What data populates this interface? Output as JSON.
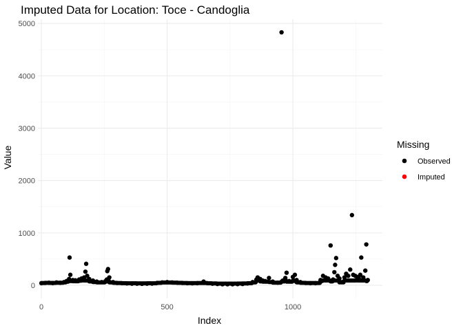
{
  "chart_data": {
    "type": "scatter",
    "title": "Imputed Data for Location: Toce - Candoglia",
    "xlabel": "Index",
    "ylabel": "Value",
    "xlim": [
      -14,
      1356
    ],
    "ylim": [
      -250,
      5080
    ],
    "x_ticks": [
      0,
      500,
      1000
    ],
    "x_tick_labels": [
      "0",
      "500",
      "1000"
    ],
    "y_ticks": [
      0,
      1000,
      2000,
      3000,
      4000,
      5000
    ],
    "y_tick_labels": [
      "0",
      "1000",
      "2000",
      "3000",
      "4000",
      "5000"
    ],
    "x_minor_ticks": [
      250,
      750,
      1250
    ],
    "y_minor_ticks": [
      500,
      1500,
      2500,
      3500,
      4500
    ],
    "grid": true,
    "legend": {
      "title": "Missing",
      "position": "right",
      "entries": [
        {
          "label": "Observed",
          "color": "#000000"
        },
        {
          "label": "Imputed",
          "color": "#ff0000"
        }
      ]
    },
    "series": [
      {
        "name": "Observed",
        "color": "#000000",
        "points": [
          [
            0,
            40
          ],
          [
            15,
            45
          ],
          [
            30,
            50
          ],
          [
            45,
            42
          ],
          [
            60,
            55
          ],
          [
            75,
            48
          ],
          [
            90,
            60
          ],
          [
            100,
            80
          ],
          [
            110,
            120
          ],
          [
            112,
            530
          ],
          [
            115,
            200
          ],
          [
            125,
            100
          ],
          [
            135,
            95
          ],
          [
            150,
            110
          ],
          [
            160,
            130
          ],
          [
            170,
            150
          ],
          [
            175,
            260
          ],
          [
            178,
            410
          ],
          [
            182,
            180
          ],
          [
            190,
            120
          ],
          [
            205,
            90
          ],
          [
            220,
            70
          ],
          [
            240,
            60
          ],
          [
            255,
            80
          ],
          [
            260,
            110
          ],
          [
            262,
            270
          ],
          [
            265,
            310
          ],
          [
            270,
            150
          ],
          [
            285,
            60
          ],
          [
            300,
            45
          ],
          [
            320,
            40
          ],
          [
            340,
            35
          ],
          [
            360,
            30
          ],
          [
            380,
            30
          ],
          [
            400,
            28
          ],
          [
            420,
            30
          ],
          [
            440,
            32
          ],
          [
            460,
            45
          ],
          [
            480,
            55
          ],
          [
            500,
            60
          ],
          [
            520,
            55
          ],
          [
            540,
            50
          ],
          [
            560,
            45
          ],
          [
            580,
            40
          ],
          [
            600,
            38
          ],
          [
            620,
            40
          ],
          [
            645,
            70
          ],
          [
            660,
            40
          ],
          [
            680,
            30
          ],
          [
            700,
            25
          ],
          [
            720,
            20
          ],
          [
            740,
            20
          ],
          [
            760,
            20
          ],
          [
            780,
            22
          ],
          [
            800,
            25
          ],
          [
            820,
            35
          ],
          [
            840,
            60
          ],
          [
            855,
            110
          ],
          [
            860,
            150
          ],
          [
            870,
            120
          ],
          [
            880,
            90
          ],
          [
            890,
            80
          ],
          [
            905,
            140
          ],
          [
            920,
            70
          ],
          [
            940,
            50
          ],
          [
            955,
            4830
          ],
          [
            960,
            90
          ],
          [
            970,
            140
          ],
          [
            975,
            240
          ],
          [
            985,
            80
          ],
          [
            1000,
            160
          ],
          [
            1008,
            200
          ],
          [
            1015,
            100
          ],
          [
            1030,
            60
          ],
          [
            1050,
            45
          ],
          [
            1070,
            40
          ],
          [
            1090,
            40
          ],
          [
            1110,
            100
          ],
          [
            1120,
            180
          ],
          [
            1130,
            150
          ],
          [
            1140,
            130
          ],
          [
            1150,
            760
          ],
          [
            1155,
            90
          ],
          [
            1160,
            110
          ],
          [
            1165,
            250
          ],
          [
            1168,
            390
          ],
          [
            1172,
            520
          ],
          [
            1178,
            180
          ],
          [
            1185,
            130
          ],
          [
            1195,
            60
          ],
          [
            1205,
            150
          ],
          [
            1212,
            220
          ],
          [
            1220,
            180
          ],
          [
            1228,
            300
          ],
          [
            1235,
            1340
          ],
          [
            1240,
            200
          ],
          [
            1248,
            180
          ],
          [
            1255,
            160
          ],
          [
            1262,
            140
          ],
          [
            1268,
            200
          ],
          [
            1272,
            530
          ],
          [
            1280,
            150
          ],
          [
            1288,
            280
          ],
          [
            1292,
            780
          ],
          [
            1298,
            100
          ]
        ]
      },
      {
        "name": "Imputed",
        "color": "#ff0000",
        "points": []
      }
    ]
  }
}
